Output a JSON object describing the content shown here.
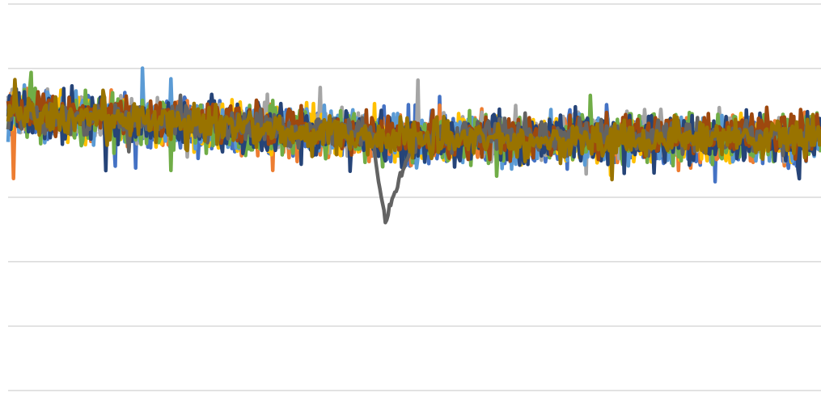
{
  "chart_data": {
    "type": "line",
    "title": "",
    "xlabel": "",
    "ylabel": "",
    "ylim": [
      0,
      6
    ],
    "gridlines": [
      0,
      1,
      2,
      3,
      4,
      5,
      6
    ],
    "grid": true,
    "legend": "none",
    "n_points": 600,
    "series": [
      {
        "color": "#4472c4",
        "level_start": 4.3,
        "level_end": 3.9,
        "noise": 0.2
      },
      {
        "color": "#ed7d31",
        "level_start": 4.3,
        "level_end": 3.9,
        "noise": 0.18
      },
      {
        "color": "#a5a5a5",
        "level_start": 4.35,
        "level_end": 3.95,
        "noise": 0.17
      },
      {
        "color": "#ffc000",
        "level_start": 4.3,
        "level_end": 3.9,
        "noise": 0.17
      },
      {
        "color": "#5b9bd5",
        "level_start": 4.3,
        "level_end": 3.9,
        "noise": 0.18
      },
      {
        "color": "#70ad47",
        "level_start": 4.3,
        "level_end": 3.9,
        "noise": 0.18
      },
      {
        "color": "#264478",
        "level_start": 4.3,
        "level_end": 3.9,
        "noise": 0.2
      },
      {
        "color": "#9e480e",
        "level_start": 4.35,
        "level_end": 3.95,
        "noise": 0.16
      },
      {
        "color": "#636363",
        "level_start": 4.3,
        "level_end": 3.95,
        "noise": 0.12,
        "dip": {
          "start": 0.45,
          "min_at": 0.465,
          "end": 0.51,
          "min_value": 2.65
        }
      },
      {
        "color": "#997300",
        "level_start": 4.3,
        "level_end": 3.9,
        "noise": 0.14
      }
    ]
  }
}
